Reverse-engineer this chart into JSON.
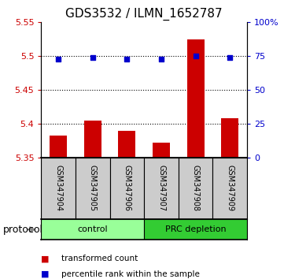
{
  "title": "GDS3532 / ILMN_1652787",
  "samples": [
    "GSM347904",
    "GSM347905",
    "GSM347906",
    "GSM347907",
    "GSM347908",
    "GSM347909"
  ],
  "bar_values": [
    5.383,
    5.405,
    5.39,
    5.372,
    5.525,
    5.408
  ],
  "bar_bottom": 5.35,
  "scatter_values": [
    73,
    74,
    73,
    73,
    75,
    74
  ],
  "bar_color": "#cc0000",
  "scatter_color": "#0000cc",
  "ylim_left": [
    5.35,
    5.55
  ],
  "ylim_right": [
    0,
    100
  ],
  "yticks_left": [
    5.35,
    5.4,
    5.45,
    5.5,
    5.55
  ],
  "ytick_labels_left": [
    "5.35",
    "5.4",
    "5.45",
    "5.5",
    "5.55"
  ],
  "yticks_right": [
    0,
    25,
    50,
    75,
    100
  ],
  "ytick_labels_right": [
    "0",
    "25",
    "50",
    "75",
    "100%"
  ],
  "hlines": [
    5.4,
    5.45,
    5.5
  ],
  "groups": [
    {
      "label": "control",
      "indices": [
        0,
        1,
        2
      ],
      "color": "#99ff99"
    },
    {
      "label": "PRC depletion",
      "indices": [
        3,
        4,
        5
      ],
      "color": "#33cc33"
    }
  ],
  "protocol_label": "protocol",
  "legend_bar_label": "transformed count",
  "legend_scatter_label": "percentile rank within the sample",
  "title_fontsize": 11,
  "axis_label_color_left": "#cc0000",
  "axis_label_color_right": "#0000cc",
  "sample_box_color": "#cccccc",
  "bar_width": 0.5
}
